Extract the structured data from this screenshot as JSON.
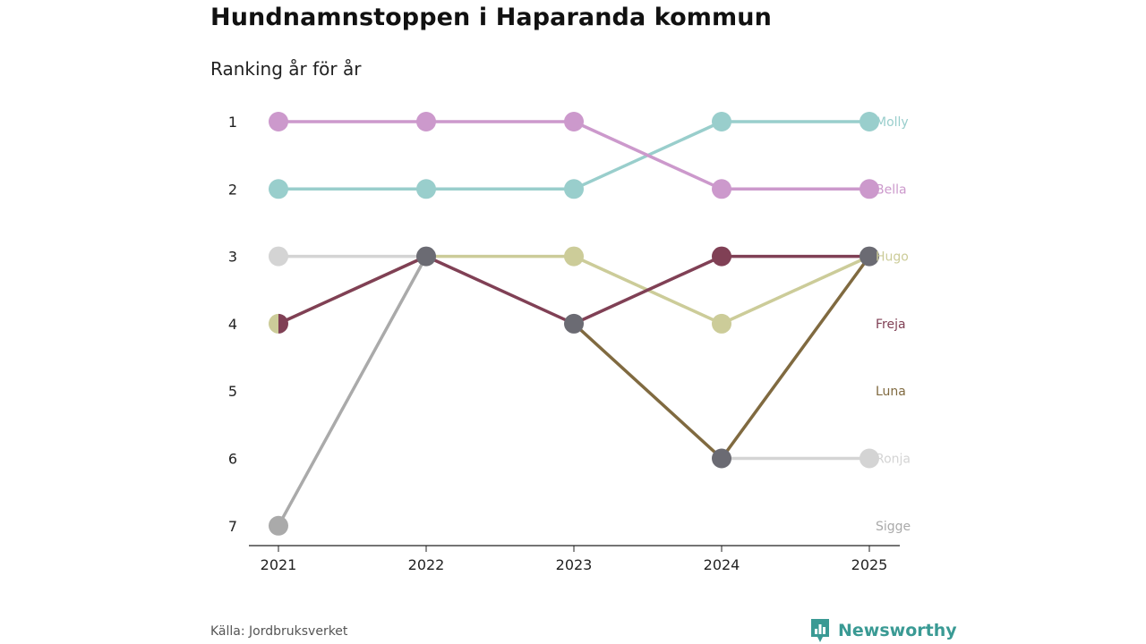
{
  "chart_data": {
    "type": "bump",
    "title": "Hundnamnstoppen i Haparanda kommun",
    "subtitle": "Ranking år för år",
    "x": [
      "2021",
      "2022",
      "2023",
      "2024",
      "2025"
    ],
    "y_ticks": [
      "1",
      "2",
      "3",
      "4",
      "5",
      "6",
      "7"
    ],
    "ylim": [
      1,
      7
    ],
    "series": [
      {
        "name": "Ronja",
        "color": "#d4d4d4",
        "ranks": [
          3,
          3,
          null,
          6,
          6
        ]
      },
      {
        "name": "Sigge",
        "color": "#aaaaaa",
        "ranks": [
          7,
          3,
          null,
          null,
          null
        ]
      },
      {
        "name": "Molly",
        "color": "#99cecc",
        "ranks": [
          2,
          2,
          2,
          1,
          1
        ]
      },
      {
        "name": "Bella",
        "color": "#cc99cc",
        "ranks": [
          1,
          1,
          1,
          2,
          2
        ]
      },
      {
        "name": "Hugo",
        "color": "#cccc99",
        "ranks": [
          4,
          3,
          3,
          4,
          3
        ]
      },
      {
        "name": "Freja",
        "color": "#804055",
        "ranks": [
          4,
          3,
          4,
          3,
          3
        ]
      },
      {
        "name": "Luna",
        "color": "#806a40",
        "ranks": [
          null,
          null,
          4,
          6,
          3
        ]
      }
    ],
    "overlap_marker_color": "#6b6b73"
  },
  "source": "Källa: Jordbruksverket",
  "brand": {
    "name": "Newsworthy",
    "color": "#3a9a94"
  }
}
